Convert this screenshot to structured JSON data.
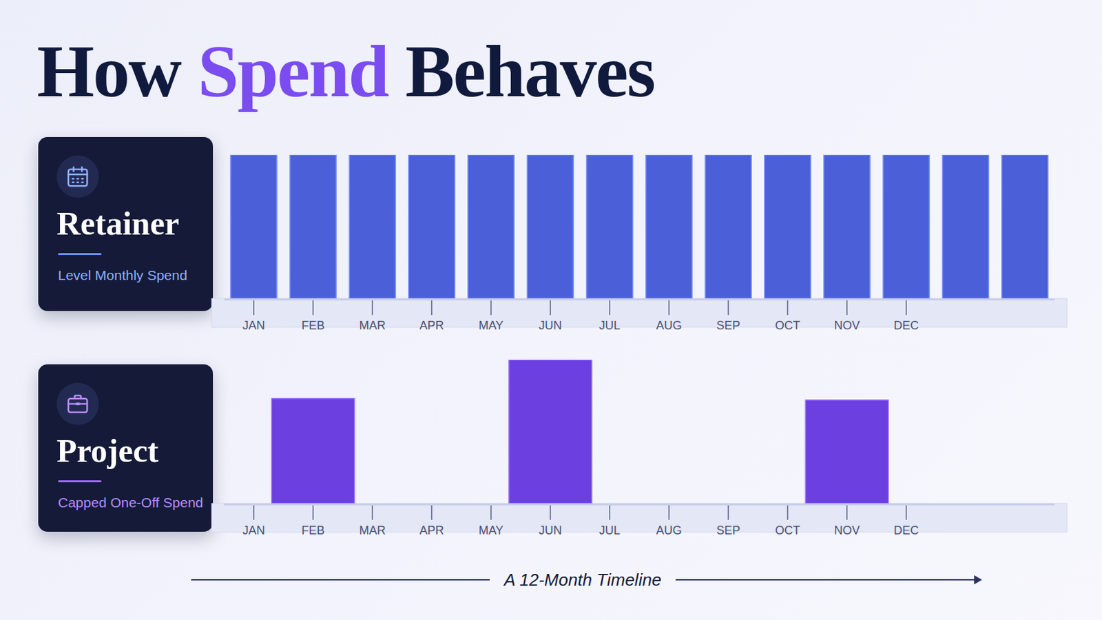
{
  "title": {
    "text": "How Spend Behaves",
    "highlight": "Spend"
  },
  "footer": "A 12-Month Timeline",
  "chart_data": [
    {
      "type": "bar",
      "title": "Retainer",
      "subtitle": "Level Monthly Spend",
      "categories": [
        "JAN",
        "FEB",
        "MAR",
        "APR",
        "MAY",
        "JUN",
        "JUL",
        "AUG",
        "SEP",
        "OCT",
        "NOV",
        "DEC",
        null,
        null
      ],
      "values": [
        10,
        10,
        10,
        10,
        10,
        10,
        10,
        10,
        10,
        10,
        10,
        10,
        10,
        10
      ],
      "color": "#4a5fd8",
      "ylim": [
        0,
        10
      ],
      "tick_labels": "x"
    },
    {
      "type": "bar",
      "title": "Project",
      "subtitle": "Capped One-Off Spend",
      "categories": [
        "JAN",
        "FEB",
        "MAR",
        "APR",
        "MAY",
        "JUN",
        "JUL",
        "AUG",
        "SEP",
        "OCT",
        "NOV",
        "DEC",
        null,
        null
      ],
      "values": [
        null,
        7.3,
        null,
        null,
        null,
        10,
        null,
        null,
        null,
        null,
        7.2,
        null,
        null,
        null
      ],
      "color": "#6b3fe0",
      "ylim": [
        0,
        10
      ],
      "tick_labels": "x"
    }
  ]
}
